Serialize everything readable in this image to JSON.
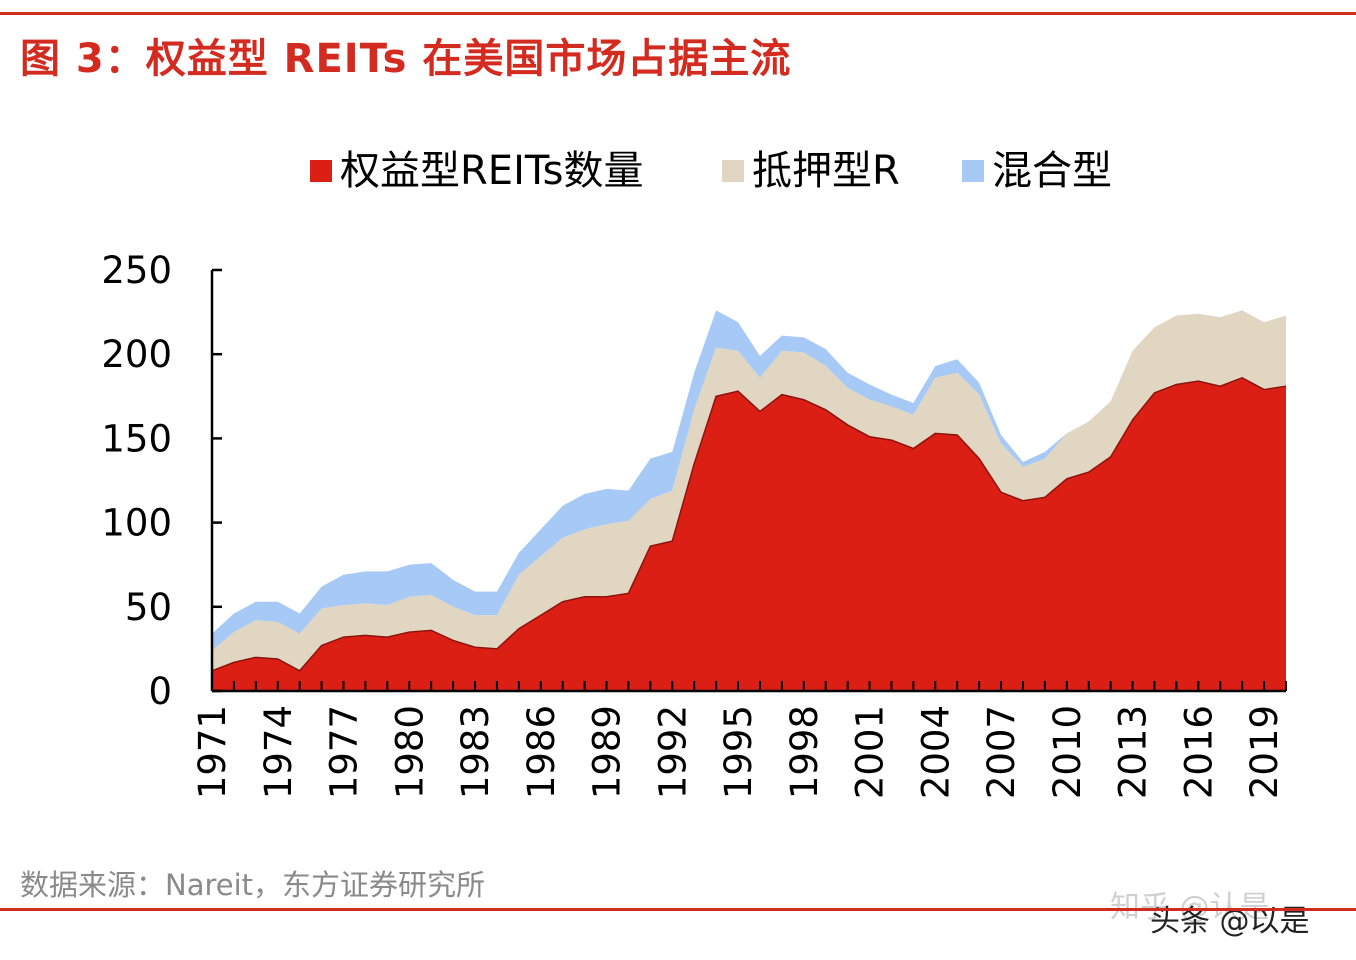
{
  "title": "图 3：权益型 REITs 在美国市场占据主流",
  "source": "数据来源：Nareit，东方证券研究所",
  "watermarks": [
    "知乎 @认是",
    "头条 @以是"
  ],
  "colors": {
    "title": "#d42b20",
    "equity": "#dc1f14",
    "mortgage": "#e0d6c2",
    "hybrid": "#a6c9f5"
  },
  "chart_data": {
    "type": "area",
    "stacked": true,
    "title": "",
    "xlabel": "",
    "ylabel": "",
    "ylim": [
      0,
      250
    ],
    "yticks": [
      0,
      50,
      100,
      150,
      200,
      250
    ],
    "xtick_labels": [
      "1971",
      "1974",
      "1977",
      "1980",
      "1983",
      "1986",
      "1989",
      "1992",
      "1995",
      "1998",
      "2001",
      "2004",
      "2007",
      "2010",
      "2013",
      "2016",
      "2019"
    ],
    "grid": false,
    "legend_position": "top",
    "x": [
      1971,
      1972,
      1973,
      1974,
      1975,
      1976,
      1977,
      1978,
      1979,
      1980,
      1981,
      1982,
      1983,
      1984,
      1985,
      1986,
      1987,
      1988,
      1989,
      1990,
      1991,
      1992,
      1993,
      1994,
      1995,
      1996,
      1997,
      1998,
      1999,
      2000,
      2001,
      2002,
      2003,
      2004,
      2005,
      2006,
      2007,
      2008,
      2009,
      2010,
      2011,
      2012,
      2013,
      2014,
      2015,
      2016,
      2017,
      2018,
      2019,
      2020
    ],
    "series": [
      {
        "name": "权益型REITs数量",
        "color": "#dc1f14",
        "values": [
          12,
          17,
          20,
          19,
          12,
          27,
          32,
          33,
          32,
          35,
          36,
          30,
          26,
          25,
          37,
          45,
          53,
          56,
          56,
          58,
          86,
          89,
          135,
          175,
          178,
          166,
          176,
          173,
          167,
          158,
          151,
          149,
          144,
          153,
          152,
          138,
          118,
          113,
          115,
          126,
          130,
          139,
          161,
          177,
          182,
          184,
          181,
          186,
          179,
          181
        ]
      },
      {
        "name": "抵押型R",
        "color": "#e0d6c2",
        "values": [
          12,
          18,
          22,
          22,
          22,
          22,
          19,
          19,
          19,
          21,
          21,
          20,
          19,
          20,
          32,
          35,
          38,
          40,
          43,
          43,
          28,
          30,
          32,
          29,
          24,
          20,
          26,
          28,
          26,
          22,
          22,
          20,
          20,
          33,
          37,
          38,
          29,
          20,
          23,
          27,
          30,
          33,
          41,
          39,
          41,
          40,
          41,
          40,
          40,
          42
        ]
      },
      {
        "name": "混合型",
        "color": "#a6c9f5",
        "values": [
          10,
          11,
          11,
          12,
          12,
          13,
          18,
          19,
          20,
          19,
          19,
          16,
          14,
          14,
          13,
          16,
          19,
          21,
          21,
          18,
          24,
          23,
          22,
          22,
          17,
          13,
          9,
          9,
          10,
          9,
          9,
          7,
          7,
          7,
          8,
          7,
          5,
          3,
          4,
          0,
          0,
          0,
          0,
          0,
          0,
          0,
          0,
          0,
          0,
          0
        ]
      }
    ]
  }
}
